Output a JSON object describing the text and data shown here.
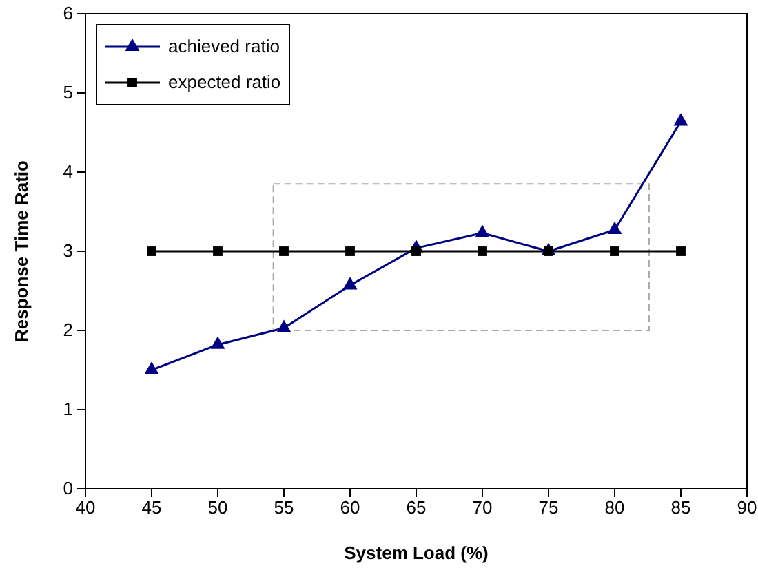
{
  "chart_data": {
    "type": "line",
    "xlabel": "System Load (%)",
    "ylabel": "Response Time Ratio",
    "x": [
      45,
      50,
      55,
      60,
      65,
      70,
      75,
      80,
      85
    ],
    "series": [
      {
        "name": "achieved ratio",
        "color": "#000080",
        "marker": "triangle",
        "values": [
          1.5,
          1.82,
          2.03,
          2.57,
          3.04,
          3.23,
          3.0,
          3.27,
          4.64
        ]
      },
      {
        "name": "expected ratio",
        "color": "#000000",
        "marker": "square",
        "values": [
          3,
          3,
          3,
          3,
          3,
          3,
          3,
          3,
          3
        ]
      }
    ],
    "xlim": [
      40,
      90
    ],
    "xticks": [
      40,
      45,
      50,
      55,
      60,
      65,
      70,
      75,
      80,
      85,
      90
    ],
    "ylim": [
      0,
      6
    ],
    "yticks": [
      0,
      1,
      2,
      3,
      4,
      5,
      6
    ],
    "grid": false,
    "legend": "top left",
    "line_style": "solid"
  }
}
